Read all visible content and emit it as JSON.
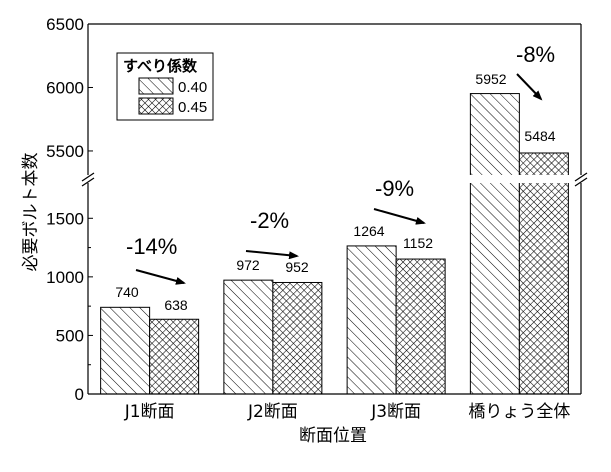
{
  "chart_data": {
    "type": "bar",
    "title": "",
    "xlabel": "断面位置",
    "ylabel": "必要ボルト本数",
    "categories": [
      "J1断面",
      "J2断面",
      "J3断面",
      "橋りょう全体"
    ],
    "series": [
      {
        "name": "0.40",
        "values": [
          740,
          972,
          1264,
          5952
        ],
        "pattern": "diagonal-hatch"
      },
      {
        "name": "0.45",
        "values": [
          638,
          952,
          1152,
          5484
        ],
        "pattern": "crosshatch"
      }
    ],
    "axis_break": {
      "lower_range": [
        0,
        1750
      ],
      "upper_range": [
        5350,
        6500
      ]
    },
    "yticks_lower": [
      "0",
      "500",
      "1000",
      "1500"
    ],
    "yticks_upper": [
      "5500",
      "6000",
      "6500"
    ],
    "legend": {
      "title": "すべり係数",
      "placement": "top-left"
    },
    "annotations": [
      "-14%",
      "-2%",
      "-9%",
      "-8%"
    ],
    "grid": false
  }
}
